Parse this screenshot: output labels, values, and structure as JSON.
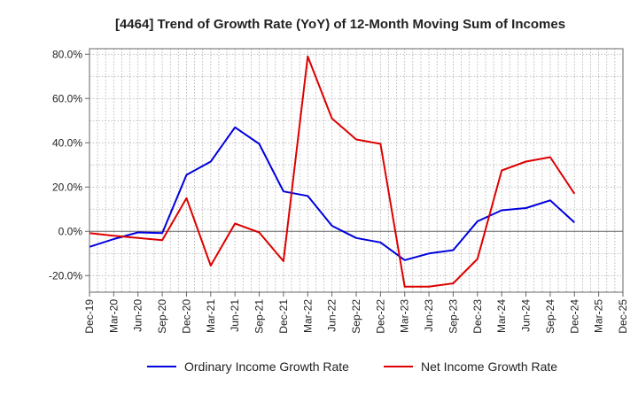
{
  "chart_data": {
    "type": "line",
    "title": "[4464]  Trend of Growth Rate (YoY) of 12-Month Moving Sum of Incomes",
    "xlabel": "",
    "ylabel": "",
    "ylim": [
      -27.5,
      82.5
    ],
    "y_ticks": [
      "80.0%",
      "60.0%",
      "40.0%",
      "20.0%",
      "0.0%",
      "-20.0%"
    ],
    "y_tick_values": [
      80,
      60,
      40,
      20,
      0,
      -20
    ],
    "x_ticks": [
      "Dec-19",
      "Mar-20",
      "Jun-20",
      "Sep-20",
      "Dec-20",
      "Mar-21",
      "Jun-21",
      "Sep-21",
      "Dec-21",
      "Mar-22",
      "Jun-22",
      "Sep-22",
      "Dec-22",
      "Mar-23",
      "Jun-23",
      "Sep-23",
      "Dec-23",
      "Mar-24",
      "Jun-24",
      "Sep-24",
      "Dec-24",
      "Mar-25",
      "Dec-25"
    ],
    "x": [
      "Dec-19",
      "Mar-20",
      "Jun-20",
      "Sep-20",
      "Dec-20",
      "Mar-21",
      "Jun-21",
      "Sep-21",
      "Dec-21",
      "Mar-22",
      "Jun-22",
      "Sep-22",
      "Dec-22",
      "Mar-23",
      "Jun-23",
      "Sep-23",
      "Dec-23",
      "Mar-24",
      "Jun-24",
      "Sep-24",
      "Dec-24"
    ],
    "series": [
      {
        "name": "Ordinary Income Growth Rate",
        "color": "#0000dd",
        "values": [
          -7.0,
          -3.5,
          -0.5,
          -0.8,
          25.5,
          31.5,
          47.0,
          39.5,
          18.0,
          16.0,
          2.5,
          -3.0,
          -5.0,
          -13.0,
          -10.0,
          -8.5,
          4.5,
          9.5,
          10.5,
          14.0,
          4.0
        ]
      },
      {
        "name": "Net Income Growth Rate",
        "color": "#dd0000",
        "values": [
          -0.8,
          -2.0,
          -3.0,
          -4.0,
          15.0,
          -15.5,
          3.5,
          -0.5,
          -13.5,
          79.0,
          51.0,
          41.5,
          39.5,
          -25.0,
          -25.0,
          -23.5,
          -12.5,
          27.5,
          31.5,
          33.5,
          17.0
        ]
      }
    ],
    "grid": true,
    "legend_position": "bottom"
  }
}
